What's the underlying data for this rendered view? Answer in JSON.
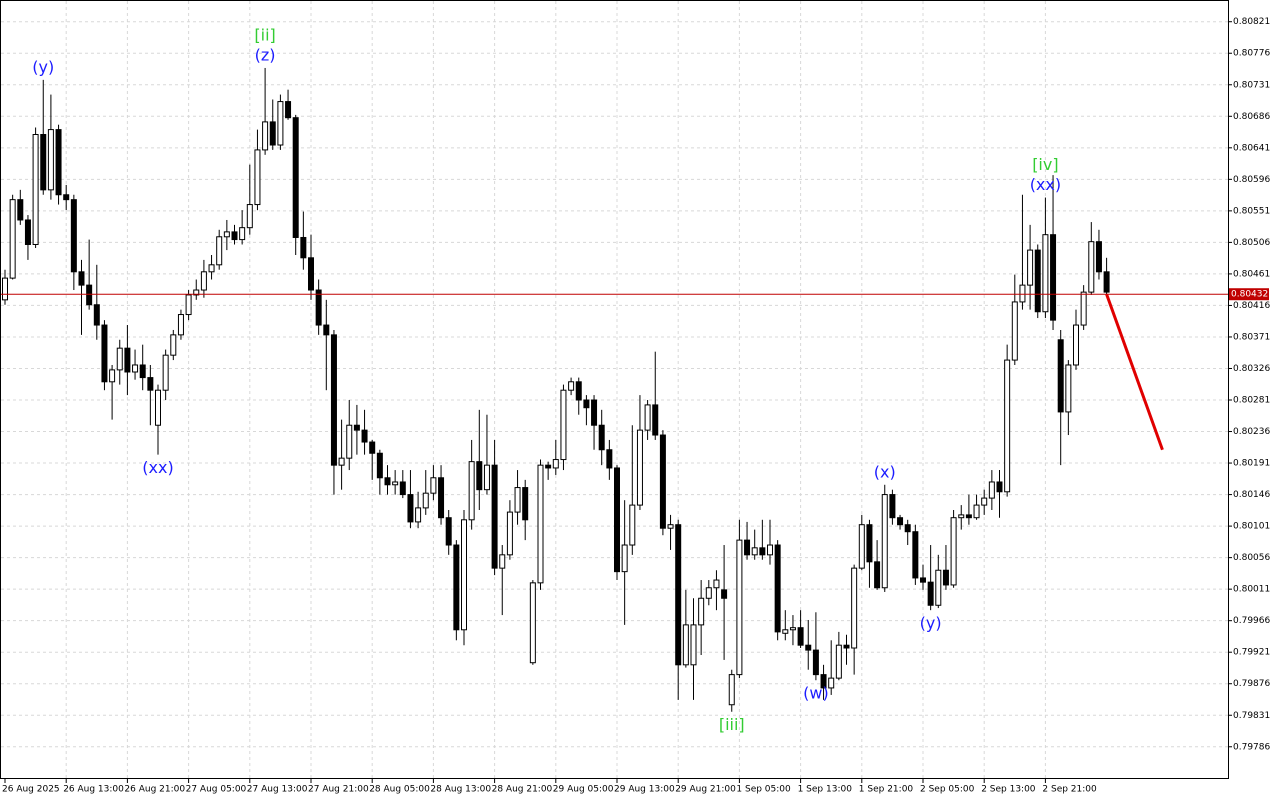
{
  "chart_data": {
    "type": "candlestick",
    "x": [
      "26 Aug 2025",
      null,
      null,
      null,
      null,
      null,
      null,
      null,
      "26 Aug 13:00",
      null,
      null,
      null,
      null,
      null,
      null,
      null,
      "26 Aug 21:00",
      null,
      null,
      null,
      null,
      null,
      null,
      null,
      "27 Aug 05:00",
      null,
      null,
      null,
      null,
      null,
      null,
      null,
      "27 Aug 13:00",
      null,
      null,
      null,
      null,
      null,
      null,
      null,
      "27 Aug 21:00",
      null,
      null,
      null,
      null,
      null,
      null,
      null,
      "28 Aug 05:00",
      null,
      null,
      null,
      null,
      null,
      null,
      null,
      "28 Aug 13:00",
      null,
      null,
      null,
      null,
      null,
      null,
      null,
      "28 Aug 21:00",
      null,
      null,
      null,
      null,
      null,
      null,
      null,
      "29 Aug 05:00",
      null,
      null,
      null,
      null,
      null,
      null,
      null,
      "29 Aug 13:00",
      null,
      null,
      null,
      null,
      null,
      null,
      null,
      "29 Aug 21:00",
      null,
      null,
      null,
      null,
      null,
      null,
      null,
      "1 Sep 05:00",
      null,
      null,
      null,
      null,
      null,
      null,
      null,
      "1 Sep 13:00",
      null,
      null,
      null,
      null,
      null,
      null,
      null,
      "1 Sep 21:00",
      null,
      null,
      null,
      null,
      null,
      null,
      null,
      "2 Sep 05:00",
      null,
      null,
      null,
      null,
      null,
      null,
      null,
      "2 Sep 13:00",
      null,
      null,
      null,
      null,
      null,
      null,
      null,
      "2 Sep 21:00",
      null,
      null,
      null,
      null,
      null,
      null,
      null,
      null
    ],
    "open": [
      0.80424,
      0.80455,
      0.80567,
      0.80538,
      0.80503,
      0.8066,
      0.80581,
      0.80667,
      0.80574,
      0.80567,
      0.80464,
      0.80445,
      0.80417,
      0.80388,
      0.80307,
      0.80324,
      0.80355,
      0.80321,
      0.80331,
      0.80313,
      0.80245,
      0.80295,
      0.80345,
      0.80374,
      0.80403,
      0.80431,
      0.80438,
      0.80464,
      0.80474,
      0.80514,
      0.80521,
      0.8051,
      0.80527,
      0.8056,
      0.80638,
      0.80678,
      0.80645,
      0.80707,
      0.80684,
      0.80513,
      0.80484,
      0.80438,
      0.80388,
      0.80374,
      0.80188,
      0.80198,
      0.80245,
      0.80238,
      0.80221,
      0.80205,
      0.8017,
      0.8016,
      0.80164,
      0.80146,
      0.80107,
      0.80127,
      0.80148,
      0.8017,
      0.80113,
      0.80074,
      0.79953,
      0.8011,
      0.80193,
      0.80153,
      0.80188,
      0.80041,
      0.8006,
      0.80121,
      0.80156,
      0.79906,
      0.8002,
      0.80188,
      0.80184,
      0.80196,
      0.80295,
      0.80307,
      0.80281,
      0.80281,
      0.80245,
      0.8021,
      0.80184,
      0.80036,
      0.80074,
      0.80131,
      0.80238,
      0.80274,
      0.80231,
      0.80098,
      0.80103,
      0.79903,
      0.79903,
      0.7996,
      0.79998,
      0.80013,
      0.8001,
      0.79846,
      0.79889,
      0.80081,
      0.8006,
      0.8007,
      0.8006,
      0.80074,
      0.79948,
      0.79953,
      0.79956,
      0.79931,
      0.79924,
      0.79889,
      0.7987,
      0.79884,
      0.79931,
      0.79927,
      0.80041,
      0.80103,
      0.8005,
      0.80013,
      0.80146,
      0.80113,
      0.80103,
      0.80093,
      0.80027,
      0.80021,
      0.79988,
      0.80038,
      0.80017,
      0.80113,
      0.80117,
      0.80113,
      0.80131,
      0.80141,
      0.80164,
      0.8015,
      0.80338,
      0.80421,
      0.80445,
      0.80495,
      0.80407,
      0.80517,
      0.80367,
      0.80264,
      0.80331,
      0.80388,
      0.80435,
      0.80507,
      0.80464
    ],
    "high": [
      0.80467,
      0.80574,
      0.80581,
      0.80545,
      0.8067,
      0.80738,
      0.80717,
      0.80674,
      0.80588,
      0.80574,
      0.80481,
      0.8051,
      0.80474,
      0.80395,
      0.80331,
      0.80367,
      0.80388,
      0.80353,
      0.8036,
      0.80331,
      0.80303,
      0.80353,
      0.80381,
      0.8041,
      0.80438,
      0.80453,
      0.80481,
      0.80488,
      0.80524,
      0.80538,
      0.80531,
      0.80552,
      0.80617,
      0.80667,
      0.80755,
      0.8071,
      0.80717,
      0.80724,
      0.80688,
      0.8055,
      0.80517,
      0.80453,
      0.80424,
      0.80381,
      0.80253,
      0.80281,
      0.80274,
      0.80267,
      0.80224,
      0.8021,
      0.80188,
      0.80181,
      0.80181,
      0.80181,
      0.8015,
      0.80181,
      0.80188,
      0.80188,
      0.80124,
      0.80081,
      0.80124,
      0.80224,
      0.80267,
      0.8026,
      0.80224,
      0.80074,
      0.80138,
      0.80181,
      0.80167,
      0.80024,
      0.80196,
      0.80193,
      0.80224,
      0.80303,
      0.80313,
      0.80313,
      0.80288,
      0.80288,
      0.80267,
      0.80224,
      0.80188,
      0.80138,
      0.80245,
      0.80288,
      0.80281,
      0.8035,
      0.80238,
      0.80117,
      0.8011,
      0.8001,
      0.79998,
      0.80024,
      0.80024,
      0.80038,
      0.80074,
      0.79896,
      0.8011,
      0.80107,
      0.80096,
      0.8011,
      0.8011,
      0.80081,
      0.79981,
      0.79974,
      0.79981,
      0.79967,
      0.79978,
      0.79903,
      0.79938,
      0.7995,
      0.79946,
      0.80046,
      0.80117,
      0.8011,
      0.80081,
      0.8016,
      0.80153,
      0.80117,
      0.8011,
      0.80103,
      0.80046,
      0.80074,
      0.8006,
      0.80074,
      0.80124,
      0.80131,
      0.80146,
      0.80146,
      0.80153,
      0.80181,
      0.80181,
      0.8036,
      0.8046,
      0.80574,
      0.80531,
      0.80503,
      0.8057,
      0.80602,
      0.80381,
      0.80338,
      0.8041,
      0.80445,
      0.80535,
      0.80524,
      0.80484
    ],
    "low": [
      0.80417,
      0.80453,
      0.80531,
      0.80481,
      0.80498,
      0.80574,
      0.80567,
      0.8056,
      0.80552,
      0.80438,
      0.80374,
      0.8041,
      0.80367,
      0.80295,
      0.80253,
      0.80303,
      0.80288,
      0.8031,
      0.80295,
      0.80245,
      0.80203,
      0.80281,
      0.80338,
      0.80367,
      0.80395,
      0.80424,
      0.80427,
      0.80453,
      0.80467,
      0.80495,
      0.80503,
      0.80503,
      0.80517,
      0.80552,
      0.80631,
      0.80638,
      0.80638,
      0.80681,
      0.80488,
      0.80467,
      0.80424,
      0.80374,
      0.80295,
      0.80146,
      0.80153,
      0.80181,
      0.80203,
      0.80203,
      0.80167,
      0.80146,
      0.80146,
      0.80146,
      0.80141,
      0.80098,
      0.80098,
      0.80117,
      0.80138,
      0.80103,
      0.8006,
      0.79938,
      0.79931,
      0.80096,
      0.80124,
      0.80146,
      0.80031,
      0.79974,
      0.80053,
      0.80103,
      0.80081,
      0.79903,
      0.8001,
      0.80167,
      0.80174,
      0.80181,
      0.80288,
      0.8026,
      0.80245,
      0.8021,
      0.80188,
      0.80167,
      0.80024,
      0.7996,
      0.8006,
      0.80124,
      0.80224,
      0.80224,
      0.80088,
      0.80067,
      0.79853,
      0.79899,
      0.79853,
      0.79917,
      0.79988,
      0.79981,
      0.7991,
      0.79836,
      0.79884,
      0.80053,
      0.80053,
      0.80053,
      0.80046,
      0.79938,
      0.79938,
      0.79931,
      0.79927,
      0.79896,
      0.79881,
      0.79853,
      0.7986,
      0.79881,
      0.79903,
      0.79889,
      0.80038,
      0.80013,
      0.8001,
      0.80007,
      0.80103,
      0.80096,
      0.80074,
      0.80017,
      0.8001,
      0.79981,
      0.79984,
      0.8001,
      0.80013,
      0.80096,
      0.80103,
      0.8011,
      0.80117,
      0.80124,
      0.80113,
      0.80143,
      0.80331,
      0.8041,
      0.8041,
      0.80398,
      0.80398,
      0.80381,
      0.80188,
      0.80231,
      0.80324,
      0.80381,
      0.80431,
      0.80453,
      0.80431
    ],
    "close": [
      0.80455,
      0.80567,
      0.80538,
      0.80503,
      0.8066,
      0.80581,
      0.80667,
      0.80574,
      0.80567,
      0.80464,
      0.80445,
      0.80417,
      0.80388,
      0.80307,
      0.80324,
      0.80355,
      0.80321,
      0.80331,
      0.80313,
      0.80295,
      0.80295,
      0.80345,
      0.80374,
      0.80403,
      0.80431,
      0.80438,
      0.80464,
      0.80474,
      0.80514,
      0.80521,
      0.8051,
      0.80527,
      0.8056,
      0.80638,
      0.80678,
      0.80645,
      0.80707,
      0.80684,
      0.80513,
      0.80484,
      0.80438,
      0.80388,
      0.80374,
      0.80188,
      0.80198,
      0.80245,
      0.80238,
      0.80221,
      0.80205,
      0.8017,
      0.8016,
      0.80164,
      0.80146,
      0.80107,
      0.80127,
      0.80148,
      0.8017,
      0.80113,
      0.80074,
      0.79953,
      0.8011,
      0.80193,
      0.80153,
      0.80188,
      0.80041,
      0.8006,
      0.80121,
      0.80156,
      0.8011,
      0.8002,
      0.80188,
      0.80184,
      0.80196,
      0.80295,
      0.80307,
      0.80281,
      0.8027,
      0.80245,
      0.8021,
      0.80184,
      0.80036,
      0.80074,
      0.80131,
      0.80238,
      0.80274,
      0.80231,
      0.80098,
      0.80103,
      0.79903,
      0.7996,
      0.7996,
      0.79998,
      0.80013,
      0.80024,
      0.79998,
      0.79889,
      0.80081,
      0.8006,
      0.8007,
      0.8006,
      0.80074,
      0.7995,
      0.79953,
      0.79956,
      0.79931,
      0.79924,
      0.79889,
      0.7987,
      0.79884,
      0.79931,
      0.79927,
      0.80041,
      0.80103,
      0.8005,
      0.80013,
      0.80146,
      0.80113,
      0.80103,
      0.80093,
      0.80027,
      0.80021,
      0.79988,
      0.80038,
      0.80017,
      0.80113,
      0.80117,
      0.80113,
      0.80131,
      0.80141,
      0.80164,
      0.8015,
      0.80338,
      0.80421,
      0.80445,
      0.80495,
      0.80407,
      0.80517,
      0.80395,
      0.80264,
      0.80331,
      0.80388,
      0.80435,
      0.80507,
      0.80464,
      0.80435
    ],
    "up_color": "#ffffff",
    "down_color": "#000000",
    "wick_color": "#000000",
    "ylim": [
      0.7974,
      0.80852
    ],
    "yticks": [
      0.80821,
      0.80776,
      0.80731,
      0.80686,
      0.80641,
      0.80596,
      0.80551,
      0.80506,
      0.80461,
      0.80416,
      0.80371,
      0.80326,
      0.80281,
      0.80236,
      0.80191,
      0.80146,
      0.80101,
      0.80056,
      0.80011,
      0.79966,
      0.79921,
      0.79876,
      0.79831,
      0.79786
    ],
    "grid": true,
    "current_price": 0.80432,
    "current_price_color": "#c00000",
    "forecast": {
      "color": "#e00000",
      "values": [
        0.80432,
        0.8021
      ]
    },
    "annotations": [
      {
        "text": "(y)",
        "color": "#1c1cff",
        "index": 5,
        "position": "above"
      },
      {
        "text": "(z)",
        "color": "#1c1cff",
        "index": 34,
        "position": "above"
      },
      {
        "text": "[ii]",
        "color": "#33cc33",
        "index": 34,
        "position": "above"
      },
      {
        "text": "(xx)",
        "color": "#1c1cff",
        "index": 20,
        "position": "below"
      },
      {
        "text": "[iii]",
        "color": "#33cc33",
        "index": 95,
        "position": "below"
      },
      {
        "text": "(w)",
        "color": "#1c1cff",
        "index": 106,
        "position": "below"
      },
      {
        "text": "(x)",
        "color": "#1c1cff",
        "index": 115,
        "position": "above"
      },
      {
        "text": "(y)",
        "color": "#1c1cff",
        "index": 121,
        "position": "below"
      },
      {
        "text": "(xx)",
        "color": "#1c1cff",
        "index": 136,
        "position": "above"
      },
      {
        "text": "[iv]",
        "color": "#33cc33",
        "index": 136,
        "position": "above"
      }
    ]
  }
}
